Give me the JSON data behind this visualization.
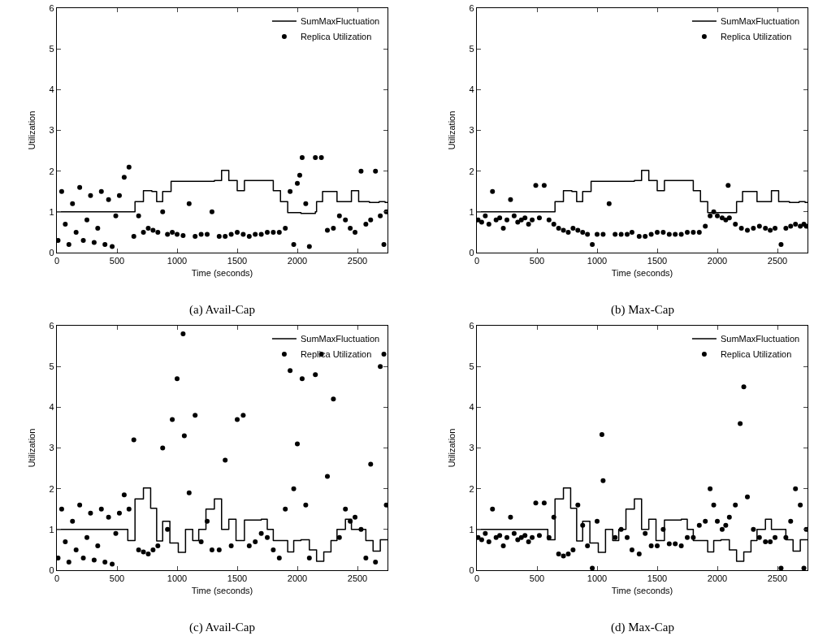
{
  "chart_data": [
    {
      "type": "scatter",
      "xlabel": "Time (seconds)",
      "ylabel": "Utilization",
      "annotations": [
        "(a) Avail-Cap"
      ],
      "xlim": [
        0,
        2750
      ],
      "xticks": [
        0,
        500,
        1000,
        1500,
        2000,
        2500
      ],
      "ylim": [
        0,
        6
      ],
      "yticks": [
        0,
        1,
        2,
        3,
        4,
        5,
        6
      ],
      "grid": false,
      "legend": "top right",
      "series": [
        {
          "name": "SumMaxFluctuation",
          "type": "step",
          "marker": "none",
          "color": "#000000",
          "x": [
            0,
            650,
            720,
            790,
            830,
            880,
            950,
            1310,
            1370,
            1430,
            1500,
            1560,
            1800,
            1860,
            1920,
            2030,
            2150,
            2160,
            2210,
            2330,
            2450,
            2510,
            2600,
            2680,
            2730,
            2750
          ],
          "values": [
            1.0,
            1.25,
            1.52,
            1.5,
            1.25,
            1.5,
            1.75,
            1.77,
            2.02,
            1.77,
            1.52,
            1.77,
            1.52,
            1.25,
            0.98,
            0.96,
            1.0,
            1.25,
            1.5,
            1.25,
            1.52,
            1.25,
            1.23,
            1.25,
            1.23,
            1.23
          ]
        },
        {
          "name": "Replica Utilization",
          "marker": "circle",
          "color": "#000000",
          "x": [
            10,
            40,
            70,
            100,
            130,
            160,
            190,
            220,
            250,
            280,
            310,
            340,
            370,
            400,
            430,
            460,
            490,
            520,
            560,
            600,
            640,
            680,
            720,
            760,
            800,
            840,
            880,
            920,
            960,
            1000,
            1050,
            1100,
            1150,
            1200,
            1250,
            1290,
            1350,
            1400,
            1450,
            1500,
            1550,
            1600,
            1650,
            1700,
            1750,
            1800,
            1850,
            1900,
            1940,
            1970,
            2000,
            2040,
            2070,
            2100,
            2150,
            2200,
            2250,
            2300,
            2350,
            2400,
            2440,
            2480,
            2530,
            2570,
            2610,
            2650,
            2690,
            2720,
            2740,
            2020
          ],
          "values": [
            0.3,
            1.5,
            0.7,
            0.2,
            1.2,
            0.5,
            1.6,
            0.3,
            0.8,
            1.4,
            0.25,
            0.6,
            1.5,
            0.2,
            1.3,
            0.15,
            0.9,
            1.4,
            1.85,
            2.1,
            0.4,
            0.9,
            0.5,
            0.6,
            0.55,
            0.5,
            1.0,
            0.45,
            0.5,
            0.45,
            0.42,
            1.2,
            0.4,
            0.45,
            0.45,
            1.0,
            0.4,
            0.4,
            0.45,
            0.5,
            0.45,
            0.4,
            0.45,
            0.45,
            0.5,
            0.5,
            0.5,
            0.6,
            1.5,
            0.2,
            1.7,
            2.33,
            1.2,
            0.15,
            2.33,
            2.33,
            0.55,
            0.6,
            0.9,
            0.8,
            0.6,
            0.5,
            2.0,
            0.7,
            0.8,
            2.0,
            0.9,
            0.2,
            1.0,
            1.9
          ]
        }
      ]
    },
    {
      "type": "scatter",
      "xlabel": "Time (seconds)",
      "ylabel": "Utilization",
      "annotations": [
        "(b) Max-Cap"
      ],
      "xlim": [
        0,
        2750
      ],
      "xticks": [
        0,
        500,
        1000,
        1500,
        2000,
        2500
      ],
      "ylim": [
        0,
        6
      ],
      "yticks": [
        0,
        1,
        2,
        3,
        4,
        5,
        6
      ],
      "grid": false,
      "legend": "top right",
      "series": [
        {
          "name": "SumMaxFluctuation",
          "type": "step",
          "marker": "none",
          "color": "#000000",
          "x": [
            0,
            650,
            720,
            790,
            830,
            880,
            950,
            1310,
            1370,
            1430,
            1500,
            1560,
            1800,
            1860,
            1920,
            2030,
            2150,
            2160,
            2210,
            2330,
            2450,
            2510,
            2600,
            2680,
            2730,
            2750
          ],
          "values": [
            1.0,
            1.25,
            1.52,
            1.5,
            1.25,
            1.5,
            1.75,
            1.77,
            2.02,
            1.77,
            1.52,
            1.77,
            1.52,
            1.25,
            0.98,
            0.98,
            0.98,
            1.25,
            1.5,
            1.25,
            1.52,
            1.25,
            1.23,
            1.25,
            1.23,
            1.23
          ]
        },
        {
          "name": "Replica Utilization",
          "marker": "circle",
          "color": "#000000",
          "x": [
            10,
            40,
            70,
            100,
            130,
            160,
            190,
            220,
            250,
            280,
            310,
            340,
            370,
            400,
            430,
            460,
            490,
            520,
            560,
            600,
            640,
            680,
            720,
            760,
            800,
            840,
            880,
            920,
            960,
            1000,
            1050,
            1100,
            1150,
            1200,
            1250,
            1290,
            1350,
            1400,
            1450,
            1500,
            1550,
            1600,
            1650,
            1700,
            1750,
            1800,
            1850,
            1900,
            1940,
            1970,
            2000,
            2040,
            2070,
            2100,
            2150,
            2200,
            2250,
            2300,
            2350,
            2400,
            2440,
            2480,
            2530,
            2570,
            2610,
            2650,
            2690,
            2720,
            2740,
            2090
          ],
          "values": [
            0.8,
            0.75,
            0.9,
            0.7,
            1.5,
            0.8,
            0.85,
            0.6,
            0.8,
            1.3,
            0.9,
            0.75,
            0.8,
            0.85,
            0.7,
            0.8,
            1.65,
            0.85,
            1.65,
            0.8,
            0.7,
            0.6,
            0.55,
            0.5,
            0.6,
            0.55,
            0.5,
            0.45,
            0.2,
            0.45,
            0.45,
            1.2,
            0.45,
            0.45,
            0.45,
            0.5,
            0.4,
            0.4,
            0.45,
            0.5,
            0.5,
            0.45,
            0.45,
            0.45,
            0.5,
            0.5,
            0.5,
            0.65,
            0.9,
            1.0,
            0.9,
            0.85,
            0.8,
            0.85,
            0.7,
            0.6,
            0.55,
            0.6,
            0.65,
            0.6,
            0.55,
            0.6,
            0.2,
            0.6,
            0.65,
            0.7,
            0.65,
            0.7,
            0.65,
            1.65
          ]
        }
      ]
    },
    {
      "type": "scatter",
      "xlabel": "Time (seconds)",
      "ylabel": "Utilization",
      "annotations": [
        "(c) Avail-Cap"
      ],
      "xlim": [
        0,
        2750
      ],
      "xticks": [
        0,
        500,
        1000,
        1500,
        2000,
        2500
      ],
      "ylim": [
        0,
        6
      ],
      "yticks": [
        0,
        1,
        2,
        3,
        4,
        5,
        6
      ],
      "grid": false,
      "legend": "top right",
      "series": [
        {
          "name": "SumMaxFluctuation",
          "type": "step",
          "marker": "none",
          "color": "#000000",
          "x": [
            0,
            590,
            650,
            720,
            780,
            830,
            880,
            940,
            1010,
            1070,
            1130,
            1180,
            1240,
            1310,
            1370,
            1430,
            1490,
            1560,
            1700,
            1750,
            1800,
            1920,
            1970,
            2030,
            2100,
            2160,
            2220,
            2280,
            2330,
            2400,
            2450,
            2570,
            2630,
            2690,
            2750
          ],
          "values": [
            1.0,
            0.73,
            1.75,
            2.02,
            1.52,
            0.72,
            1.2,
            0.67,
            0.44,
            1.0,
            0.73,
            1.0,
            1.5,
            1.75,
            1.0,
            1.25,
            0.73,
            1.23,
            1.25,
            1.0,
            0.73,
            0.45,
            0.73,
            0.75,
            0.5,
            0.22,
            0.45,
            0.73,
            1.0,
            1.25,
            1.0,
            0.73,
            0.47,
            0.75,
            0.75
          ]
        },
        {
          "name": "Replica Utilization",
          "marker": "circle",
          "color": "#000000",
          "x": [
            10,
            40,
            70,
            100,
            130,
            160,
            190,
            220,
            250,
            280,
            310,
            340,
            370,
            400,
            430,
            460,
            490,
            520,
            560,
            600,
            640,
            680,
            720,
            760,
            800,
            840,
            880,
            920,
            960,
            1000,
            1050,
            1100,
            1150,
            1200,
            1250,
            1290,
            1350,
            1400,
            1450,
            1500,
            1550,
            1600,
            1650,
            1700,
            1750,
            1800,
            1850,
            1900,
            1940,
            1970,
            2000,
            2040,
            2070,
            2100,
            2150,
            2200,
            2250,
            2300,
            2350,
            2400,
            2440,
            2480,
            2530,
            2570,
            2610,
            2650,
            2690,
            2720,
            2740,
            1060
          ],
          "values": [
            0.3,
            1.5,
            0.7,
            0.2,
            1.2,
            0.5,
            1.6,
            0.3,
            0.8,
            1.4,
            0.25,
            0.6,
            1.5,
            0.2,
            1.3,
            0.15,
            0.9,
            1.4,
            1.85,
            1.5,
            3.2,
            0.5,
            0.45,
            0.4,
            0.5,
            0.6,
            3.0,
            1.0,
            3.7,
            4.7,
            5.8,
            1.9,
            3.8,
            0.7,
            1.2,
            0.5,
            0.5,
            2.7,
            0.6,
            3.7,
            3.8,
            0.6,
            0.7,
            0.9,
            0.8,
            0.5,
            0.3,
            1.5,
            4.9,
            2.0,
            3.1,
            4.7,
            1.6,
            0.3,
            4.8,
            5.3,
            2.3,
            4.2,
            0.8,
            1.5,
            1.2,
            1.3,
            1.0,
            0.3,
            2.6,
            0.2,
            5.0,
            5.3,
            1.6,
            3.3
          ]
        }
      ]
    },
    {
      "type": "scatter",
      "xlabel": "Time (seconds)",
      "ylabel": "Utilization",
      "annotations": [
        "(d) Max-Cap"
      ],
      "xlim": [
        0,
        2750
      ],
      "xticks": [
        0,
        500,
        1000,
        1500,
        2000,
        2500
      ],
      "ylim": [
        0,
        6
      ],
      "yticks": [
        0,
        1,
        2,
        3,
        4,
        5,
        6
      ],
      "grid": false,
      "legend": "top right",
      "series": [
        {
          "name": "SumMaxFluctuation",
          "type": "step",
          "marker": "none",
          "color": "#000000",
          "x": [
            0,
            590,
            650,
            720,
            780,
            830,
            880,
            940,
            1010,
            1070,
            1130,
            1180,
            1240,
            1310,
            1370,
            1430,
            1490,
            1560,
            1700,
            1750,
            1800,
            1920,
            1970,
            2030,
            2100,
            2160,
            2220,
            2280,
            2330,
            2400,
            2450,
            2570,
            2630,
            2690,
            2750
          ],
          "values": [
            1.0,
            0.75,
            1.75,
            2.02,
            1.52,
            0.72,
            1.2,
            0.67,
            0.44,
            1.0,
            0.73,
            1.0,
            1.5,
            1.75,
            1.0,
            1.25,
            0.73,
            1.23,
            1.25,
            1.0,
            0.73,
            0.45,
            0.73,
            0.75,
            0.5,
            0.22,
            0.45,
            0.73,
            1.0,
            1.25,
            1.0,
            0.75,
            0.47,
            0.75,
            0.75
          ]
        },
        {
          "name": "Replica Utilization",
          "marker": "circle",
          "color": "#000000",
          "x": [
            10,
            40,
            70,
            100,
            130,
            160,
            190,
            220,
            250,
            280,
            310,
            340,
            370,
            400,
            430,
            460,
            490,
            520,
            560,
            600,
            640,
            680,
            720,
            760,
            800,
            840,
            880,
            920,
            960,
            1000,
            1050,
            1040,
            1150,
            1200,
            1250,
            1290,
            1350,
            1400,
            1450,
            1500,
            1550,
            1600,
            1650,
            1700,
            1750,
            1800,
            1850,
            1900,
            1940,
            1970,
            2000,
            2040,
            2070,
            2100,
            2150,
            2220,
            2250,
            2300,
            2350,
            2400,
            2440,
            2480,
            2530,
            2570,
            2610,
            2650,
            2690,
            2720,
            2740,
            2190
          ],
          "values": [
            0.8,
            0.75,
            0.9,
            0.7,
            1.5,
            0.8,
            0.85,
            0.6,
            0.8,
            1.3,
            0.9,
            0.75,
            0.8,
            0.85,
            0.7,
            0.8,
            1.65,
            0.85,
            1.65,
            0.8,
            1.3,
            0.4,
            0.35,
            0.4,
            0.5,
            1.6,
            1.1,
            0.6,
            0.05,
            1.2,
            2.2,
            3.33,
            0.8,
            1.0,
            0.8,
            0.5,
            0.4,
            0.9,
            0.6,
            0.6,
            1.0,
            0.65,
            0.65,
            0.6,
            0.8,
            0.8,
            1.1,
            1.2,
            2.0,
            1.6,
            1.2,
            1.0,
            1.1,
            1.3,
            1.6,
            4.5,
            1.8,
            1.0,
            0.8,
            0.7,
            0.7,
            0.8,
            0.05,
            0.8,
            1.2,
            2.0,
            1.6,
            0.05,
            1.0,
            3.6
          ]
        }
      ]
    }
  ]
}
